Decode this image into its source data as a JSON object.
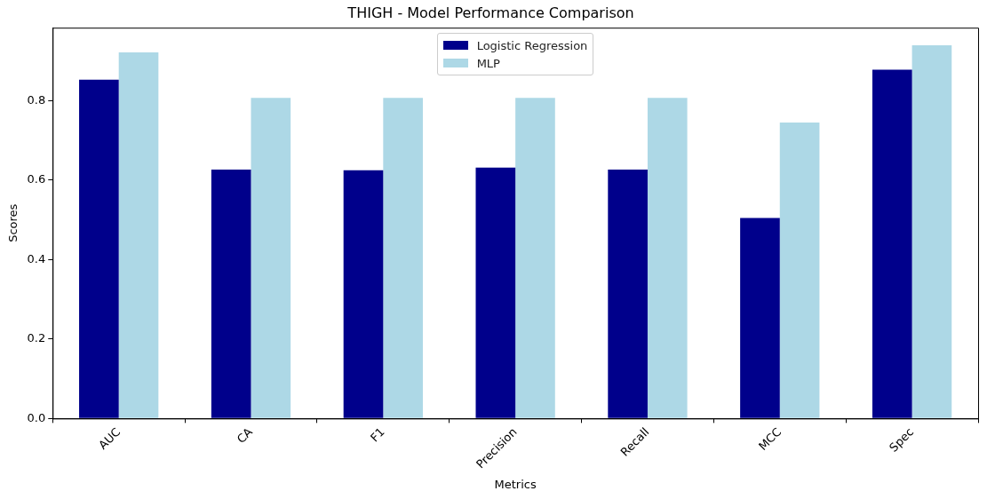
{
  "chart_data": {
    "type": "bar",
    "title": "THIGH - Model Performance Comparison",
    "xlabel": "Metrics",
    "ylabel": "Scores",
    "categories": [
      "AUC",
      "CA",
      "F1",
      "Precision",
      "Recall",
      "MCC",
      "Spec"
    ],
    "series": [
      {
        "name": "Logistic Regression",
        "color": "#00008b",
        "values": [
          0.853,
          0.627,
          0.625,
          0.632,
          0.627,
          0.505,
          0.878
        ]
      },
      {
        "name": "MLP",
        "color": "#add8e6",
        "values": [
          0.922,
          0.807,
          0.807,
          0.807,
          0.807,
          0.745,
          0.94
        ]
      }
    ],
    "ylim": [
      0,
      0.984
    ],
    "yticks": [
      {
        "value": 0,
        "label": "0.0"
      },
      {
        "value": 0.2,
        "label": "0.2"
      },
      {
        "value": 0.4,
        "label": "0.4"
      },
      {
        "value": 0.6,
        "label": "0.6"
      },
      {
        "value": 0.8,
        "label": "0.8"
      }
    ],
    "grid": false,
    "legend": "top"
  }
}
